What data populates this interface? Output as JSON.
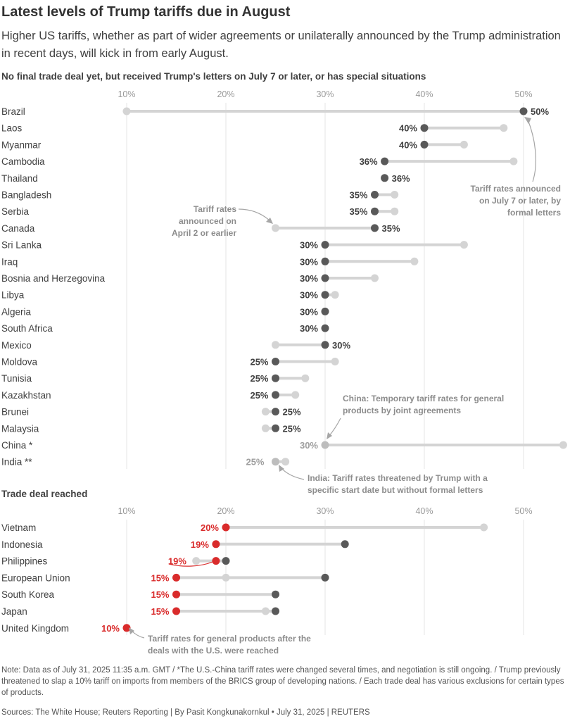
{
  "title": "Latest levels of Trump tariffs due in August",
  "subtitle": "Higher US tariffs, whether as part of wider agreements or unilaterally announced by the Trump administration in recent days, will kick in from early August.",
  "section1_title": "No final trade deal yet, but received Trump's letters on July 7 or later, or has special situations",
  "section2_title": "Trade deal reached",
  "annotations": {
    "july7": [
      "Tariff rates announced",
      "on July 7 or later, by",
      "formal letters"
    ],
    "april2": [
      "Tariff rates",
      "announced on",
      "April 2 or earlier"
    ],
    "china": [
      "China: Temporary tariff rates for general",
      "products by joint agreements"
    ],
    "india": [
      "India: Tariff rates threatened by Trump with a",
      "specific start date but without formal letters"
    ],
    "deal": [
      "Tariff rates for general products after the",
      "deals with the U.S. were reached"
    ]
  },
  "footnote": "Note: Data as of July 31, 2025 11:35 a.m. GMT / *The U.S.-China tariff rates were changed several times, and negotiation is still ongoing. / Trump previously threatened to slap a 10% tariff on imports from members of the BRICS group of developing nations. / Each trade deal has various exclusions for certain types of products.",
  "sources": "Sources: The White House; Reuters Reporting | By Pasit Kongkunakornkul • July 31, 2025 | REUTERS",
  "colors": {
    "current": "#595959",
    "previous": "#d4d4d4",
    "deal": "#d92b2b",
    "special": "#bdbdbd",
    "grid": "#e6e6e6"
  },
  "chart_data": [
    {
      "type": "dot-range",
      "ticks": [
        "10%",
        "20%",
        "30%",
        "40%",
        "50%"
      ],
      "xlim": [
        10,
        54
      ],
      "rows": [
        {
          "country": "Brazil",
          "current": 50,
          "previous": 10,
          "label": "50%",
          "kind": "letter"
        },
        {
          "country": "Laos",
          "current": 40,
          "previous": 48,
          "label": "40%",
          "kind": "letter"
        },
        {
          "country": "Myanmar",
          "current": 40,
          "previous": 44,
          "label": "40%",
          "kind": "letter"
        },
        {
          "country": "Cambodia",
          "current": 36,
          "previous": 49,
          "label": "36%",
          "kind": "letter"
        },
        {
          "country": "Thailand",
          "current": 36,
          "previous": 36,
          "label": "36%",
          "kind": "letter"
        },
        {
          "country": "Bangladesh",
          "current": 35,
          "previous": 37,
          "label": "35%",
          "kind": "letter"
        },
        {
          "country": "Serbia",
          "current": 35,
          "previous": 37,
          "label": "35%",
          "kind": "letter"
        },
        {
          "country": "Canada",
          "current": 35,
          "previous": 25,
          "label": "35%",
          "kind": "letter"
        },
        {
          "country": "Sri Lanka",
          "current": 30,
          "previous": 44,
          "label": "30%",
          "kind": "letter"
        },
        {
          "country": "Iraq",
          "current": 30,
          "previous": 39,
          "label": "30%",
          "kind": "letter"
        },
        {
          "country": "Bosnia and Herzegovina",
          "current": 30,
          "previous": 35,
          "label": "30%",
          "kind": "letter"
        },
        {
          "country": "Libya",
          "current": 30,
          "previous": 31,
          "label": "30%",
          "kind": "letter"
        },
        {
          "country": "Algeria",
          "current": 30,
          "previous": 30,
          "label": "30%",
          "kind": "letter"
        },
        {
          "country": "South Africa",
          "current": 30,
          "previous": 30,
          "label": "30%",
          "kind": "letter"
        },
        {
          "country": "Mexico",
          "current": 30,
          "previous": 25,
          "label": "30%",
          "kind": "letter"
        },
        {
          "country": "Moldova",
          "current": 25,
          "previous": 31,
          "label": "25%",
          "kind": "letter"
        },
        {
          "country": "Tunisia",
          "current": 25,
          "previous": 28,
          "label": "25%",
          "kind": "letter"
        },
        {
          "country": "Kazakhstan",
          "current": 25,
          "previous": 27,
          "label": "25%",
          "kind": "letter"
        },
        {
          "country": "Brunei",
          "current": 25,
          "previous": 24,
          "label": "25%",
          "kind": "letter"
        },
        {
          "country": "Malaysia",
          "current": 25,
          "previous": 24,
          "label": "25%",
          "kind": "letter"
        },
        {
          "country": "China *",
          "current": 30,
          "previous": 54,
          "label": "30%",
          "kind": "special"
        },
        {
          "country": "India **",
          "current": 25,
          "previous": 26,
          "label": "25%",
          "kind": "special"
        }
      ]
    },
    {
      "type": "dot-range",
      "ticks": [
        "10%",
        "20%",
        "30%",
        "40%",
        "50%"
      ],
      "xlim": [
        10,
        54
      ],
      "rows": [
        {
          "country": "Vietnam",
          "deal": 20,
          "previous": 46,
          "label": "20%"
        },
        {
          "country": "Indonesia",
          "deal": 19,
          "letter": 32,
          "previous": 32,
          "label": "19%"
        },
        {
          "country": "Philippines",
          "deal": 19,
          "letter": 20,
          "previous": 17,
          "label": "19%"
        },
        {
          "country": "European Union",
          "deal": 15,
          "letter": 30,
          "previous": 20,
          "label": "15%"
        },
        {
          "country": "South Korea",
          "deal": 15,
          "letter": 25,
          "previous": 25,
          "label": "15%"
        },
        {
          "country": "Japan",
          "deal": 15,
          "letter": 25,
          "previous": 24,
          "label": "15%"
        },
        {
          "country": "United Kingdom",
          "deal": 10,
          "previous": 10,
          "label": "10%"
        }
      ]
    }
  ]
}
